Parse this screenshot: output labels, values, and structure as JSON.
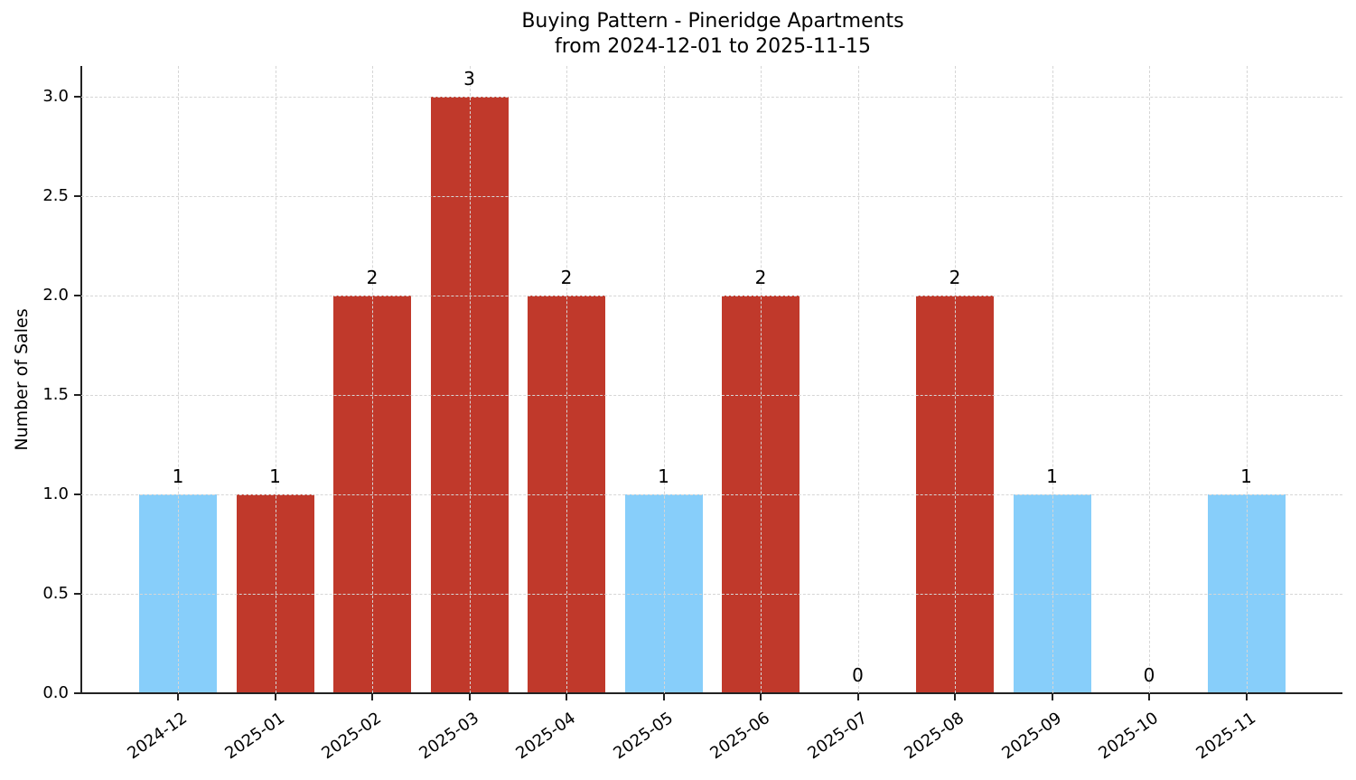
{
  "chart_data": {
    "type": "bar",
    "title": "Buying Pattern - Pineridge Apartments",
    "subtitle": "from 2024-12-01 to 2025-11-15",
    "xlabel": "",
    "ylabel": "Number of Sales",
    "ylim": [
      0,
      3.15
    ],
    "yticks": [
      "0.0",
      "0.5",
      "1.0",
      "1.5",
      "2.0",
      "2.5",
      "3.0"
    ],
    "grid": true,
    "categories": [
      "2024-12",
      "2025-01",
      "2025-02",
      "2025-03",
      "2025-04",
      "2025-05",
      "2025-06",
      "2025-07",
      "2025-08",
      "2025-09",
      "2025-10",
      "2025-11"
    ],
    "values": [
      1,
      1,
      2,
      3,
      2,
      1,
      2,
      0,
      2,
      1,
      0,
      1
    ],
    "data_labels": [
      "1",
      "1",
      "2",
      "3",
      "2",
      "1",
      "2",
      "0",
      "2",
      "1",
      "0",
      "1"
    ],
    "bar_colors": [
      "#87CEFA",
      "#C0392B",
      "#C0392B",
      "#C0392B",
      "#C0392B",
      "#87CEFA",
      "#C0392B",
      "#C0392B",
      "#C0392B",
      "#87CEFA",
      "#87CEFA",
      "#87CEFA"
    ],
    "colors": {
      "high": "#C0392B",
      "low": "#87CEFA"
    }
  }
}
